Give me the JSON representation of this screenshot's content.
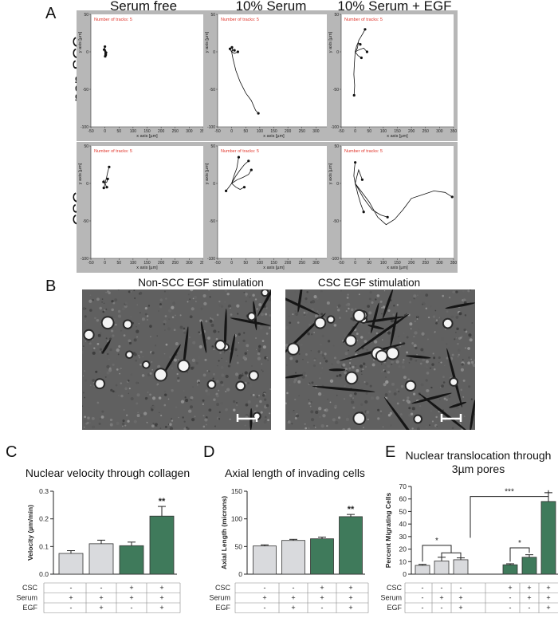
{
  "panelA": {
    "letter": "A",
    "columns": [
      "Serum free",
      "10% Serum",
      "10% Serum + EGF"
    ],
    "rows": [
      "non-SCC",
      "CSC"
    ],
    "plot_note": "Number of tracks: 5",
    "x_axis_label": "x axis [µm]",
    "y_axis_label": "y axis [µm]",
    "x_ticks": [
      "-50",
      "0",
      "50",
      "100",
      "150",
      "200",
      "250",
      "300",
      "350"
    ],
    "y_ticks": [
      "50",
      "0",
      "-50",
      "-100"
    ],
    "tracks": [
      [
        [
          [
            0,
            0
          ],
          [
            1,
            3
          ],
          [
            -1,
            5
          ],
          [
            0,
            7
          ]
        ],
        [
          [
            0,
            0
          ],
          [
            2,
            -2
          ],
          [
            3,
            -4
          ]
        ],
        [
          [
            0,
            0
          ],
          [
            -1,
            -3
          ],
          [
            1,
            -6
          ]
        ],
        [
          [
            0,
            0
          ],
          [
            3,
            2
          ],
          [
            4,
            -1
          ]
        ],
        [
          [
            0,
            0
          ],
          [
            -2,
            1
          ],
          [
            -3,
            3
          ]
        ]
      ],
      [
        [
          [
            0,
            0
          ],
          [
            5,
            -10
          ],
          [
            15,
            -25
          ],
          [
            30,
            -40
          ],
          [
            50,
            -55
          ],
          [
            70,
            -65
          ],
          [
            85,
            -78
          ],
          [
            95,
            -82
          ]
        ],
        [
          [
            0,
            0
          ],
          [
            6,
            3
          ],
          [
            10,
            2
          ]
        ],
        [
          [
            0,
            0
          ],
          [
            -4,
            2
          ],
          [
            -6,
            4
          ]
        ],
        [
          [
            0,
            0
          ],
          [
            10,
            -2
          ],
          [
            22,
            0
          ]
        ],
        [
          [
            0,
            0
          ],
          [
            3,
            5
          ],
          [
            1,
            6
          ]
        ]
      ],
      [
        [
          [
            0,
            0
          ],
          [
            8,
            5
          ],
          [
            12,
            15
          ],
          [
            20,
            20
          ],
          [
            28,
            25
          ],
          [
            35,
            30
          ]
        ],
        [
          [
            0,
            0
          ],
          [
            -3,
            -15
          ],
          [
            -5,
            -30
          ],
          [
            -2,
            -45
          ],
          [
            -4,
            -58
          ]
        ],
        [
          [
            0,
            0
          ],
          [
            10,
            -5
          ],
          [
            22,
            -8
          ]
        ],
        [
          [
            0,
            0
          ],
          [
            15,
            3
          ],
          [
            30,
            5
          ],
          [
            42,
            0
          ]
        ],
        [
          [
            0,
            0
          ],
          [
            5,
            8
          ],
          [
            10,
            12
          ],
          [
            18,
            10
          ]
        ]
      ],
      [
        [
          [
            0,
            0
          ],
          [
            6,
            8
          ],
          [
            10,
            15
          ],
          [
            15,
            22
          ]
        ],
        [
          [
            0,
            0
          ],
          [
            -3,
            4
          ],
          [
            -5,
            2
          ]
        ],
        [
          [
            0,
            0
          ],
          [
            4,
            -3
          ],
          [
            7,
            -5
          ]
        ],
        [
          [
            0,
            0
          ],
          [
            -2,
            -4
          ],
          [
            -4,
            -6
          ]
        ],
        [
          [
            0,
            0
          ],
          [
            7,
            2
          ],
          [
            10,
            6
          ]
        ]
      ],
      [
        [
          [
            0,
            0
          ],
          [
            -10,
            -5
          ],
          [
            -20,
            -10
          ]
        ],
        [
          [
            0,
            0
          ],
          [
            15,
            10
          ],
          [
            30,
            18
          ],
          [
            45,
            25
          ],
          [
            60,
            30
          ]
        ],
        [
          [
            0,
            0
          ],
          [
            10,
            12
          ],
          [
            18,
            20
          ],
          [
            25,
            35
          ]
        ],
        [
          [
            0,
            0
          ],
          [
            20,
            5
          ],
          [
            40,
            8
          ],
          [
            60,
            12
          ],
          [
            70,
            18
          ]
        ],
        [
          [
            0,
            0
          ],
          [
            15,
            -5
          ],
          [
            30,
            -8
          ],
          [
            45,
            -5
          ]
        ]
      ],
      [
        [
          [
            0,
            0
          ],
          [
            20,
            -10
          ],
          [
            50,
            -25
          ],
          [
            80,
            -45
          ],
          [
            110,
            -55
          ],
          [
            140,
            -48
          ],
          [
            170,
            -35
          ],
          [
            200,
            -20
          ],
          [
            240,
            -15
          ],
          [
            280,
            -10
          ],
          [
            320,
            -12
          ],
          [
            345,
            -18
          ]
        ],
        [
          [
            0,
            0
          ],
          [
            30,
            -20
          ],
          [
            60,
            -35
          ],
          [
            90,
            -42
          ],
          [
            115,
            -45
          ]
        ],
        [
          [
            0,
            0
          ],
          [
            -5,
            10
          ],
          [
            -3,
            20
          ],
          [
            0,
            28
          ]
        ],
        [
          [
            0,
            0
          ],
          [
            10,
            -15
          ],
          [
            20,
            -28
          ],
          [
            30,
            -38
          ]
        ],
        [
          [
            0,
            0
          ],
          [
            5,
            8
          ],
          [
            12,
            18
          ],
          [
            18,
            12
          ],
          [
            25,
            5
          ]
        ]
      ]
    ]
  },
  "panelB": {
    "letter": "B",
    "captions": [
      "Non-SCC EGF stimulation",
      "CSC EGF stimulation"
    ]
  },
  "panelC": {
    "letter": "C",
    "title": "Nuclear velocity through collagen",
    "ylabel": "Velocity (µm/min)"
  },
  "panelD": {
    "letter": "D",
    "title": "Axial length of invading cells",
    "ylabel": "Axial Length (microns)"
  },
  "panelE": {
    "letter": "E",
    "title_line1": "Nuclear translocation through",
    "title_line2": "3µm pores",
    "ylabel": "Percent Migrating Cells",
    "sig_star1": "*",
    "sig_star2": "*",
    "sig_star3": "***"
  },
  "condition_labels": [
    "CSC",
    "Serum",
    "EGF"
  ],
  "colors": {
    "grey_bar": "#d9dadd",
    "green_bar": "#3f7a5b",
    "plot_frame": "#b7b7b7",
    "note_red": "#e0342a"
  },
  "chart_data": [
    {
      "type": "bar",
      "title": "Nuclear velocity through collagen",
      "ylabel": "Velocity (µm/min)",
      "ylim": [
        0,
        0.3
      ],
      "yticks": [
        "0.0",
        "0.1",
        "0.2",
        "0.3"
      ],
      "values": [
        0.075,
        0.11,
        0.103,
        0.21
      ],
      "errors": [
        0.01,
        0.013,
        0.013,
        0.035
      ],
      "bar_colors": [
        "grey",
        "grey",
        "green",
        "green"
      ],
      "annotations": [
        "",
        "",
        "",
        "**"
      ],
      "conditions": {
        "CSC": [
          "-",
          "-",
          "+",
          "+"
        ],
        "Serum": [
          "+",
          "+",
          "+",
          "+"
        ],
        "EGF": [
          "-",
          "+",
          "-",
          "+"
        ]
      }
    },
    {
      "type": "bar",
      "title": "Axial length of invading cells",
      "ylabel": "Axial Length (microns)",
      "ylim": [
        0,
        150
      ],
      "yticks": [
        "0",
        "50",
        "100",
        "150"
      ],
      "values": [
        51,
        61,
        64,
        104
      ],
      "errors": [
        2,
        2,
        3,
        4
      ],
      "bar_colors": [
        "grey",
        "grey",
        "green",
        "green"
      ],
      "annotations": [
        "",
        "",
        "",
        "**"
      ],
      "conditions": {
        "CSC": [
          "-",
          "-",
          "+",
          "+"
        ],
        "Serum": [
          "+",
          "+",
          "+",
          "+"
        ],
        "EGF": [
          "-",
          "+",
          "-",
          "+"
        ]
      }
    },
    {
      "type": "bar",
      "title": "Nuclear translocation through 3µm pores",
      "ylabel": "Percent Migrating Cells",
      "ylim": [
        0,
        70
      ],
      "yticks": [
        "0",
        "10",
        "20",
        "30",
        "40",
        "50",
        "60",
        "70"
      ],
      "values": [
        7,
        10.5,
        11.5,
        7.5,
        13.5,
        58
      ],
      "errors": [
        0.8,
        3,
        1.5,
        0.8,
        2,
        7
      ],
      "bar_colors": [
        "grey",
        "grey",
        "grey",
        "green",
        "green",
        "green"
      ],
      "annotations": [
        "",
        "",
        "",
        "",
        "",
        ""
      ],
      "conditions": {
        "CSC": [
          "-",
          "-",
          "-",
          "+",
          "+",
          "+"
        ],
        "Serum": [
          "-",
          "+",
          "+",
          "-",
          "+",
          "+"
        ],
        "EGF": [
          "-",
          "-",
          "+",
          "-",
          "-",
          "+"
        ]
      }
    }
  ]
}
